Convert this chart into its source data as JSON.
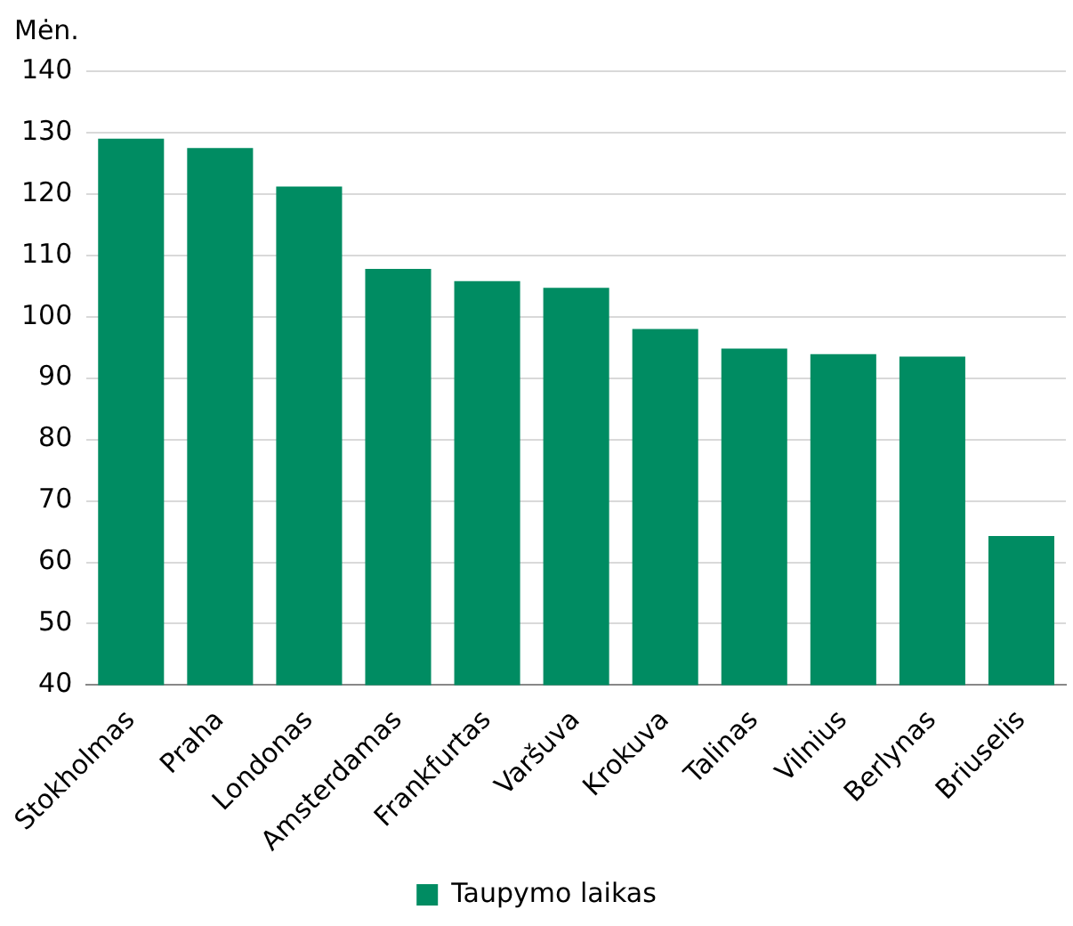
{
  "chart_data": {
    "type": "bar",
    "ylabel": "Mėn.",
    "categories": [
      "Stokholmas",
      "Praha",
      "Londonas",
      "Amsterdamas",
      "Frankfurtas",
      "Varšuva",
      "Krokuva",
      "Talinas",
      "Vilnius",
      "Berlynas",
      "Briuselis"
    ],
    "series": [
      {
        "name": "Taupymo laikas",
        "color": "#008c62",
        "values": [
          129,
          127.5,
          121.2,
          107.8,
          105.8,
          104.7,
          98,
          94.8,
          93.9,
          93.5,
          64.3
        ]
      }
    ],
    "ylim": [
      40,
      140
    ],
    "yticks": [
      40,
      50,
      60,
      70,
      80,
      90,
      100,
      110,
      120,
      130,
      140
    ],
    "grid": "y",
    "legend": "bottom"
  }
}
